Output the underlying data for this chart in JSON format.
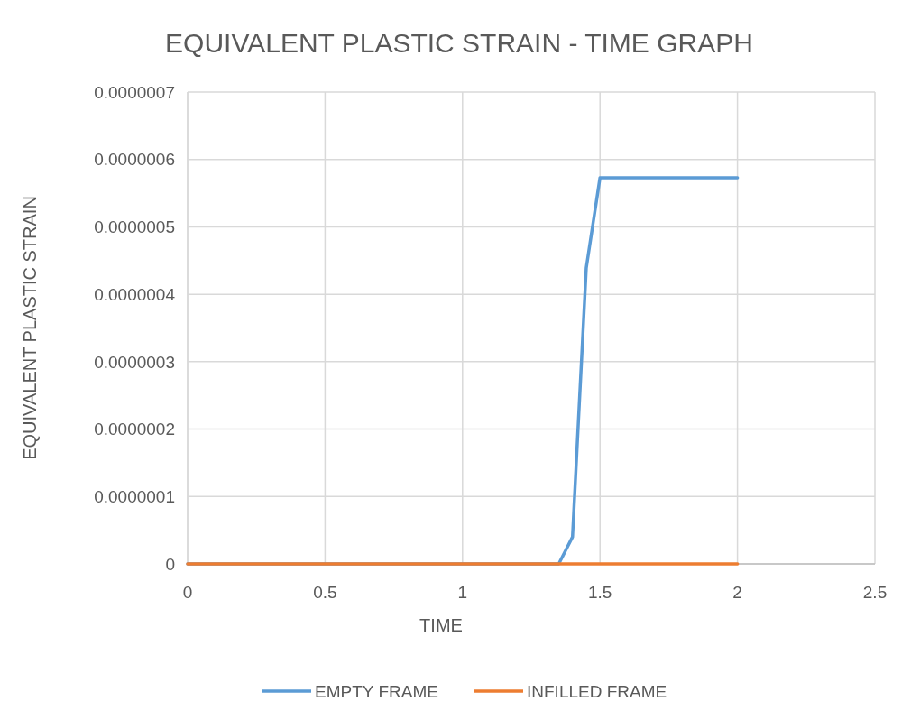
{
  "chart_data": {
    "type": "line",
    "title": "EQUIVALENT PLASTIC STRAIN - TIME GRAPH",
    "xlabel": "TIME",
    "ylabel": "EQUIVALENT PLASTIC STRAIN",
    "series": [
      {
        "name": "EMPTY FRAME",
        "color": "#5b9bd5",
        "x": [
          0,
          1.35,
          1.4,
          1.45,
          1.5,
          2
        ],
        "values": [
          0,
          0,
          4e-08,
          4.39e-07,
          5.73e-07,
          5.73e-07
        ]
      },
      {
        "name": "INFILLED FRAME",
        "color": "#ed7d31",
        "x": [
          0,
          2
        ],
        "values": [
          0,
          0
        ]
      }
    ],
    "xlim": [
      0,
      2.5
    ],
    "xticks": [
      0,
      0.5,
      1,
      1.5,
      2,
      2.5
    ],
    "ylim": [
      0,
      7e-07
    ],
    "yticks": [
      0,
      {
        "value": 1e-07,
        "label": "0.0000001"
      },
      {
        "value": 2e-07,
        "label": "0.0000002"
      },
      {
        "value": 3e-07,
        "label": "0.0000003"
      },
      {
        "value": 4e-07,
        "label": "0.0000004"
      },
      {
        "value": 5e-07,
        "label": "0.0000005"
      },
      {
        "value": 6e-07,
        "label": "0.0000006"
      },
      {
        "value": 7e-07,
        "label": "0.0000007"
      }
    ],
    "grid": true,
    "legend": "bottom",
    "marker": "none",
    "line_style": "solid"
  }
}
